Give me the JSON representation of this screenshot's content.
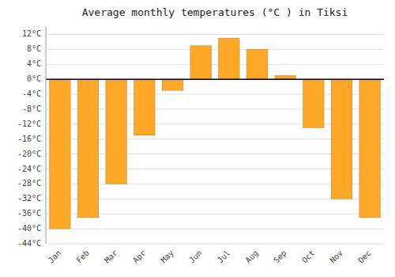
{
  "chart_data": {
    "type": "bar",
    "title": "Average monthly temperatures (°C ) in Tiksi",
    "categories": [
      "Jan",
      "Feb",
      "Mar",
      "Apr",
      "May",
      "Jun",
      "Jul",
      "Aug",
      "Sep",
      "Oct",
      "Nov",
      "Dec"
    ],
    "values": [
      -40,
      -37,
      -28,
      -15,
      -3,
      9,
      11,
      8,
      1,
      -13,
      -32,
      -37
    ],
    "color": "#FFA726",
    "ylim": [
      -44,
      14
    ],
    "yticks": [
      {
        "value": -44,
        "label": "-44°C"
      },
      {
        "value": -40,
        "label": "-40°C"
      },
      {
        "value": -36,
        "label": "-36°C"
      },
      {
        "value": -32,
        "label": "-32°C"
      },
      {
        "value": -28,
        "label": "-28°C"
      },
      {
        "value": -24,
        "label": "-24°C"
      },
      {
        "value": -20,
        "label": "-20°C"
      },
      {
        "value": -16,
        "label": "-16°C"
      },
      {
        "value": -12,
        "label": "-12°C"
      },
      {
        "value": -8,
        "label": "-8°C"
      },
      {
        "value": -4,
        "label": "-4°C"
      },
      {
        "value": 0,
        "label": "0°C"
      },
      {
        "value": 4,
        "label": "4°C"
      },
      {
        "value": 8,
        "label": "8°C"
      },
      {
        "value": 12,
        "label": "12°C"
      }
    ],
    "grid": true
  }
}
